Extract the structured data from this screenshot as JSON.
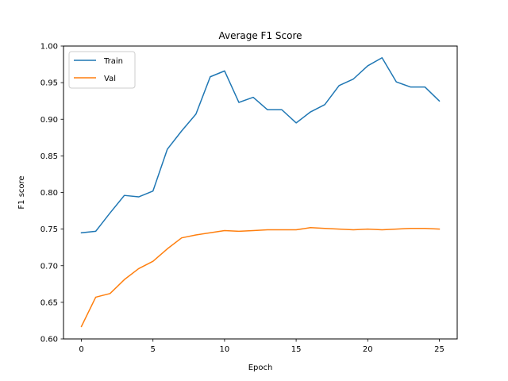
{
  "chart_data": {
    "type": "line",
    "title": "Average F1 Score",
    "xlabel": "Epoch",
    "ylabel": "F1 score",
    "xlim": [
      -1.25,
      26.25
    ],
    "ylim": [
      0.6,
      1.0
    ],
    "xticks": [
      0,
      5,
      10,
      15,
      20,
      25
    ],
    "yticks": [
      0.6,
      0.65,
      0.7,
      0.75,
      0.8,
      0.85,
      0.9,
      0.95,
      1.0
    ],
    "xtick_labels": [
      "0",
      "5",
      "10",
      "15",
      "20",
      "25"
    ],
    "ytick_labels": [
      "0.60",
      "0.65",
      "0.70",
      "0.75",
      "0.80",
      "0.85",
      "0.90",
      "0.95",
      "1.00"
    ],
    "grid": false,
    "legend_position": "top-left",
    "x": [
      0,
      1,
      2,
      3,
      4,
      5,
      6,
      7,
      8,
      9,
      10,
      11,
      12,
      13,
      14,
      15,
      16,
      17,
      18,
      19,
      20,
      21,
      22,
      23,
      24,
      25
    ],
    "series": [
      {
        "name": "Train",
        "color": "#1f77b4",
        "values": [
          0.745,
          0.747,
          0.772,
          0.796,
          0.794,
          0.802,
          0.859,
          0.884,
          0.907,
          0.958,
          0.966,
          0.923,
          0.93,
          0.913,
          0.913,
          0.895,
          0.91,
          0.92,
          0.946,
          0.955,
          0.973,
          0.984,
          0.951,
          0.944,
          0.944,
          0.925
        ]
      },
      {
        "name": "Val",
        "color": "#ff7f0e",
        "values": [
          0.617,
          0.657,
          0.662,
          0.681,
          0.696,
          0.706,
          0.723,
          0.738,
          0.742,
          0.745,
          0.748,
          0.747,
          0.748,
          0.749,
          0.749,
          0.749,
          0.752,
          0.751,
          0.75,
          0.749,
          0.75,
          0.749,
          0.75,
          0.751,
          0.751,
          0.75
        ]
      }
    ]
  }
}
